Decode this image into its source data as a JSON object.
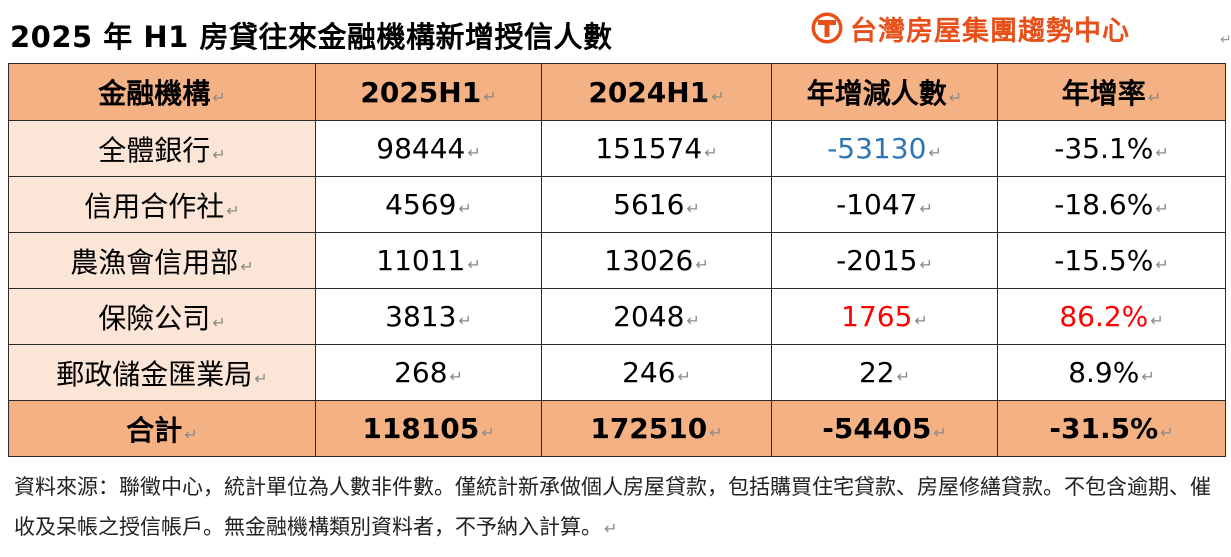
{
  "title": "2025 年 H1  房貸往來金融機構新增授信人數",
  "logo": {
    "text": "台灣房屋集團趨勢中心",
    "brand_color": "#e8501a"
  },
  "paragraph_mark": "↵",
  "table": {
    "headers": [
      "金融機構",
      "2025H1",
      "2024H1",
      "年增減人數",
      "年增率"
    ],
    "rows": [
      {
        "name": "全體銀行",
        "y2025": "98444",
        "y2024": "151574",
        "diff": "-53130",
        "rate": "-35.1%"
      },
      {
        "name": "信用合作社",
        "y2025": "4569",
        "y2024": "5616",
        "diff": "-1047",
        "rate": "-18.6%"
      },
      {
        "name": "農漁會信用部",
        "y2025": "11011",
        "y2024": "13026",
        "diff": "-2015",
        "rate": "-15.5%"
      },
      {
        "name": "保險公司",
        "y2025": "3813",
        "y2024": "2048",
        "diff": "1765",
        "rate": "86.2%"
      },
      {
        "name": "郵政儲金匯業局",
        "y2025": "268",
        "y2024": "246",
        "diff": "22",
        "rate": "8.9%"
      }
    ],
    "total": {
      "name": "合計",
      "y2025": "118105",
      "y2024": "172510",
      "diff": "-54405",
      "rate": "-31.5%"
    },
    "colors": {
      "header_bg": "#f4b183",
      "name_bg": "#fbe5d6",
      "negative_highlight": "#2e75b6",
      "positive_highlight": "#ff0000"
    }
  },
  "note": "資料來源：聯徵中心，統計單位為人數非件數。僅統計新承做個人房屋貸款，包括購買住宅貸款、房屋修繕貸款。不包含逾期、催收及呆帳之授信帳戶。無金融機構類別資料者，不予納入計算。"
}
